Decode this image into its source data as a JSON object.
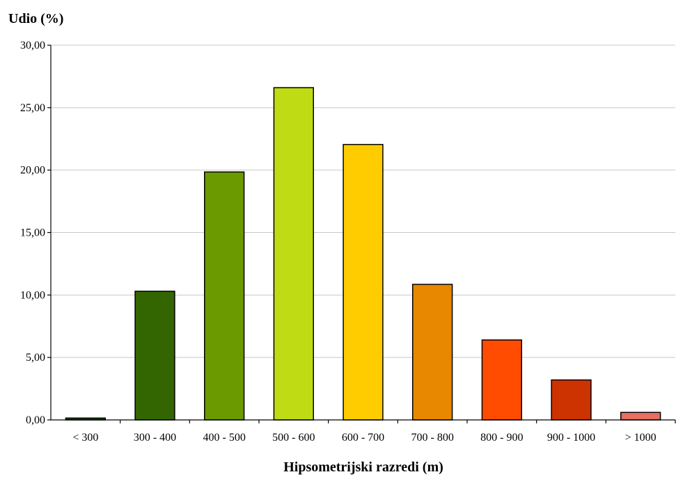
{
  "chart_data": {
    "type": "bar",
    "ylabel": "Udio (%)",
    "xlabel": "Hipsometrijski razredi (m)",
    "ylim": [
      0,
      30
    ],
    "yticks": [
      "0,00",
      "5,00",
      "10,00",
      "15,00",
      "20,00",
      "25,00",
      "30,00"
    ],
    "ytick_values": [
      0,
      5,
      10,
      15,
      20,
      25,
      30
    ],
    "grid": true,
    "categories": [
      "< 300",
      "300 - 400",
      "400 - 500",
      "500 - 600",
      "600 - 700",
      "700 - 800",
      "800 - 900",
      "900 - 1000",
      "> 1000"
    ],
    "values": [
      0.15,
      10.3,
      19.85,
      26.6,
      22.05,
      10.85,
      6.4,
      3.2,
      0.6
    ],
    "colors": [
      "#1a4a00",
      "#336600",
      "#6b9900",
      "#bfdb13",
      "#ffcc00",
      "#e88800",
      "#ff4c00",
      "#cc3300",
      "#e87060"
    ]
  }
}
